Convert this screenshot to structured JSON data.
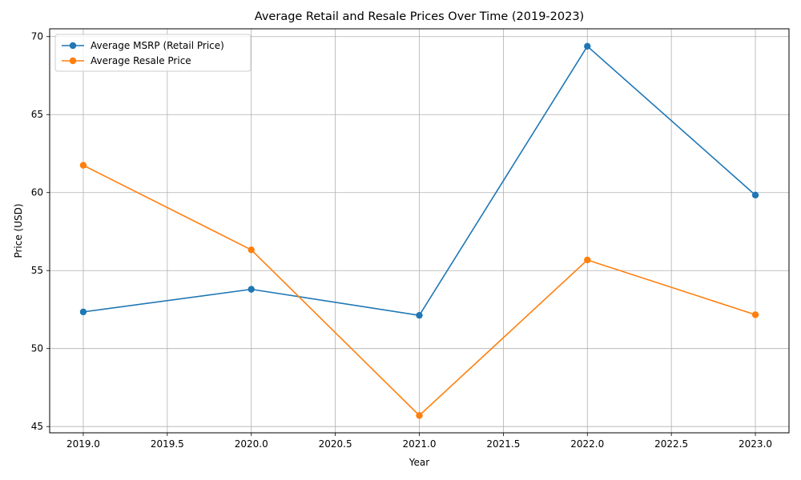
{
  "chart_data": {
    "type": "line",
    "title": "Average Retail and Resale Prices Over Time (2019-2023)",
    "xlabel": "Year",
    "ylabel": "Price (USD)",
    "x": [
      2019,
      2020,
      2021,
      2022,
      2023
    ],
    "xlim": [
      2018.8,
      2023.2
    ],
    "ylim": [
      44.6,
      70.5
    ],
    "xticks": [
      2019.0,
      2019.5,
      2020.0,
      2020.5,
      2021.0,
      2021.5,
      2022.0,
      2022.5,
      2023.0
    ],
    "xtick_labels": [
      "2019.0",
      "2019.5",
      "2020.0",
      "2020.5",
      "2021.0",
      "2021.5",
      "2022.0",
      "2022.5",
      "2023.0"
    ],
    "yticks": [
      45,
      50,
      55,
      60,
      65,
      70
    ],
    "ytick_labels": [
      "45",
      "50",
      "55",
      "60",
      "65",
      "70"
    ],
    "grid": true,
    "legend_position": "top-left",
    "series": [
      {
        "name": "Average MSRP (Retail Price)",
        "color": "#1f77b4",
        "marker": "circle",
        "values": [
          52.35,
          53.8,
          52.13,
          69.38,
          59.84
        ]
      },
      {
        "name": "Average Resale Price",
        "color": "#ff7f0e",
        "marker": "circle",
        "values": [
          61.75,
          56.33,
          45.71,
          55.68,
          52.17
        ]
      }
    ]
  }
}
